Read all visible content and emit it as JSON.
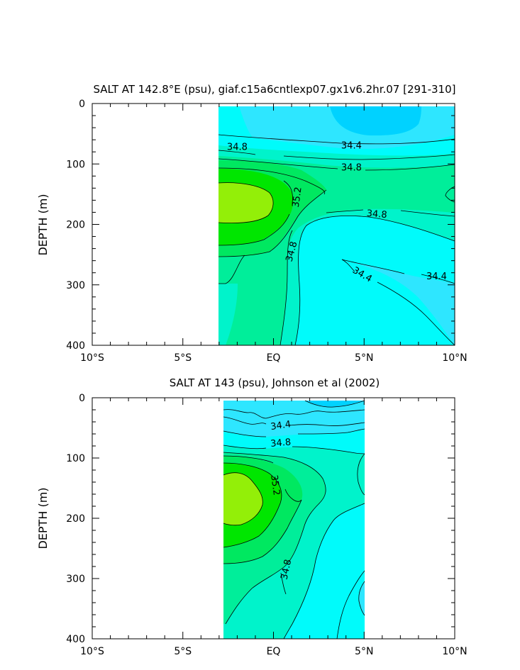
{
  "chart_data": [
    {
      "type": "contour",
      "title": "SALT AT 142.8°E (psu), giaf.c15a6cntlexp07.gx1v6.2hr.07 [291-310]",
      "xlabel": "",
      "ylabel": "DEPTH (m)",
      "xlim": [
        -10,
        10
      ],
      "ylim": [
        400,
        0
      ],
      "data_xlim": [
        -2.7,
        10
      ],
      "x_ticks": [
        {
          "value": -10,
          "label": "10°S"
        },
        {
          "value": -5,
          "label": "5°S"
        },
        {
          "value": 0,
          "label": "EQ"
        },
        {
          "value": 5,
          "label": "5°N"
        },
        {
          "value": 10,
          "label": "10°N"
        }
      ],
      "y_ticks": [
        {
          "value": 0,
          "label": "0"
        },
        {
          "value": 100,
          "label": "100"
        },
        {
          "value": 200,
          "label": "200"
        },
        {
          "value": 300,
          "label": "300"
        },
        {
          "value": 400,
          "label": "400"
        }
      ],
      "contour_labels": [
        {
          "text": "34.8",
          "x": -2.0,
          "y": 72,
          "angle": 0
        },
        {
          "text": "34.4",
          "x": 4.3,
          "y": 70,
          "angle": 0
        },
        {
          "text": "34.8",
          "x": 4.3,
          "y": 106,
          "angle": 0
        },
        {
          "text": "35.2",
          "x": 1.3,
          "y": 155,
          "angle": -82
        },
        {
          "text": "34.8",
          "x": 5.7,
          "y": 183,
          "angle": 5
        },
        {
          "text": "34.8",
          "x": 1.0,
          "y": 245,
          "angle": -75
        },
        {
          "text": "34.4",
          "x": 4.9,
          "y": 283,
          "angle": 30
        },
        {
          "text": "34.4",
          "x": 9.0,
          "y": 286,
          "angle": 0
        }
      ],
      "colors": {
        "s_34_0": "#00d2ff",
        "s_34_4": "#2ee6ff",
        "s_34_6": "#00fbfb",
        "s_34_8": "#00f3cb",
        "s_35_0": "#00ee9a",
        "s_35_2": "#00e860",
        "s_35_4": "#00e600",
        "s_35_6": "#93ef08"
      }
    },
    {
      "type": "contour",
      "title": "SALT AT 143 (psu), Johnson et al (2002)",
      "xlabel": "",
      "ylabel": "DEPTH (m)",
      "xlim": [
        -10,
        10
      ],
      "ylim": [
        400,
        0
      ],
      "data_xlim": [
        -2.4,
        5
      ],
      "x_ticks": [
        {
          "value": -10,
          "label": "10°S"
        },
        {
          "value": -5,
          "label": "5°S"
        },
        {
          "value": 0,
          "label": "EQ"
        },
        {
          "value": 5,
          "label": "5°N"
        },
        {
          "value": 10,
          "label": "10°N"
        }
      ],
      "y_ticks": [
        {
          "value": 0,
          "label": "0"
        },
        {
          "value": 100,
          "label": "100"
        },
        {
          "value": 200,
          "label": "200"
        },
        {
          "value": 300,
          "label": "300"
        },
        {
          "value": 400,
          "label": "400"
        }
      ],
      "contour_labels": [
        {
          "text": "34.4",
          "x": 0.4,
          "y": 46,
          "angle": -8
        },
        {
          "text": "34.8",
          "x": 0.4,
          "y": 75,
          "angle": -5
        },
        {
          "text": "35.2",
          "x": 0.1,
          "y": 145,
          "angle": 82
        },
        {
          "text": "34.8",
          "x": 0.7,
          "y": 285,
          "angle": -78
        }
      ],
      "colors": {
        "s_34_0": "#00d2ff",
        "s_34_4": "#2ee6ff",
        "s_34_6": "#00fbfb",
        "s_34_8": "#00f3cb",
        "s_35_0": "#00ee9a",
        "s_35_2": "#00e860",
        "s_35_4": "#00e600",
        "s_35_6": "#93ef08"
      }
    }
  ]
}
